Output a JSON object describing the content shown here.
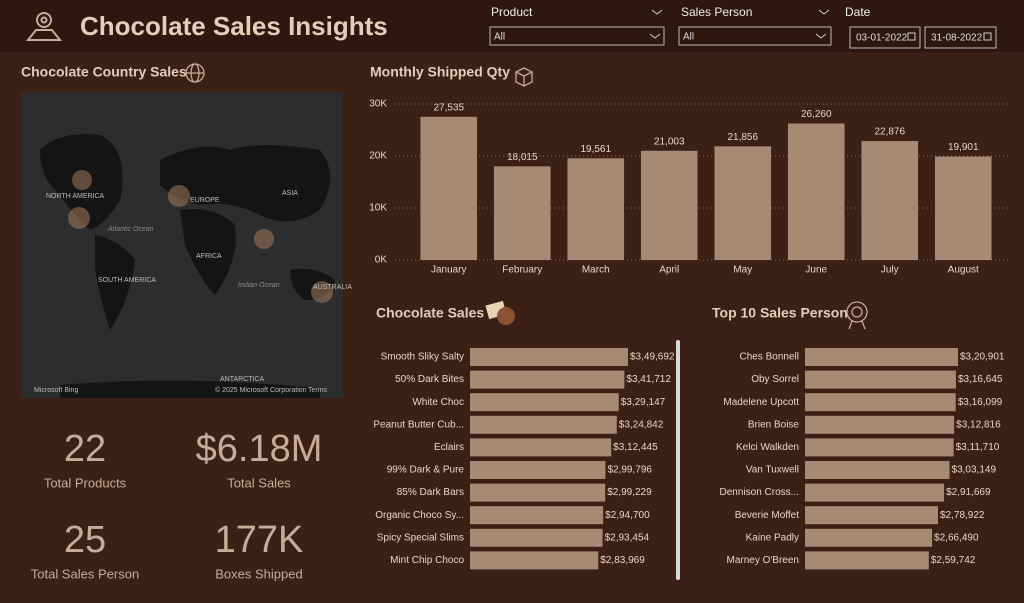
{
  "header": {
    "title": "Chocolate Sales Insights"
  },
  "filters": {
    "product": {
      "label": "Product",
      "value": "All"
    },
    "sales_person": {
      "label": "Sales Person",
      "value": "All"
    },
    "date": {
      "label": "Date",
      "start": "03-01-2022",
      "end": "31-08-2022"
    }
  },
  "map": {
    "title": "Chocolate Country Sales",
    "labels": [
      "NORTH AMERICA",
      "EUROPE",
      "ASIA",
      "AFRICA",
      "SOUTH AMERICA",
      "Atlantic Ocean",
      "Indian Ocean",
      "ANTARCTICA",
      "AUSTRALIA"
    ],
    "credits": [
      "Microsoft Bing",
      "© 2025 Microsoft Corporation",
      "Terms"
    ]
  },
  "kpis": [
    {
      "value": "22",
      "label": "Total Products"
    },
    {
      "value": "$6.18M",
      "label": "Total Sales"
    },
    {
      "value": "25",
      "label": "Total Sales Person"
    },
    {
      "value": "177K",
      "label": "Boxes Shipped"
    }
  ],
  "chart_data": [
    {
      "type": "bar",
      "title": "Monthly Shipped Qty",
      "categories": [
        "January",
        "February",
        "March",
        "April",
        "May",
        "June",
        "July",
        "August"
      ],
      "values": [
        27535,
        18015,
        19561,
        21003,
        21856,
        26260,
        22876,
        19901
      ],
      "value_labels": [
        "27,535",
        "18,015",
        "19,561",
        "21,003",
        "21,856",
        "26,260",
        "22,876",
        "19,901"
      ],
      "color": "#a68a74",
      "ylim": [
        0,
        30000
      ],
      "yticks": [
        {
          "value": 0,
          "label": "0K"
        },
        {
          "value": 10000,
          "label": "10K"
        },
        {
          "value": 20000,
          "label": "20K"
        },
        {
          "value": 30000,
          "label": "30K"
        }
      ],
      "grid": true
    },
    {
      "type": "hbar",
      "title": "Chocolate Sales",
      "categories": [
        "Smooth Sliky Salty",
        "50% Dark Bites",
        "White Choc",
        "Peanut Butter Cub...",
        "Eclairs",
        "99% Dark & Pure",
        "85% Dark Bars",
        "Organic Choco Sy...",
        "Spicy Special Slims",
        "Mint Chip Choco"
      ],
      "values": [
        349692,
        341712,
        329147,
        324842,
        312445,
        299796,
        299229,
        294700,
        293454,
        283969
      ],
      "value_labels": [
        "$3,49,692",
        "$3,41,712",
        "$3,29,147",
        "$3,24,842",
        "$3,12,445",
        "$2,99,796",
        "$2,99,229",
        "$2,94,700",
        "$2,93,454",
        "$2,83,969"
      ],
      "color": "#a68a74"
    },
    {
      "type": "hbar",
      "title": "Top 10 Sales Person",
      "categories": [
        "Ches Bonnell",
        "Oby Sorrel",
        "Madelene Upcott",
        "Brien Boise",
        "Kelci Walkden",
        "Van Tuxwell",
        "Dennison Cross...",
        "Beverie Moffet",
        "Kaine Padly",
        "Marney O'Breen"
      ],
      "values": [
        320901,
        316645,
        316099,
        312816,
        311710,
        303149,
        291669,
        278922,
        266490,
        259742
      ],
      "value_labels": [
        "$3,20,901",
        "$3,16,645",
        "$3,16,099",
        "$3,12,816",
        "$3,11,710",
        "$3,03,149",
        "$2,91,669",
        "$2,78,922",
        "$2,66,490",
        "$2,59,742"
      ],
      "color": "#a68a74"
    }
  ]
}
